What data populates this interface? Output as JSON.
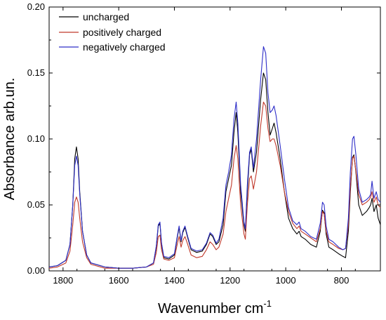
{
  "chart_data": {
    "type": "line",
    "title": "",
    "xlabel": "Wavenumber  cm",
    "xlabel_sup": "-1",
    "ylabel": "Absorbance  arb.un.",
    "xlim": [
      1850,
      660
    ],
    "ylim": [
      0,
      0.2
    ],
    "x_reversed": true,
    "x_ticks": [
      1800,
      1600,
      1400,
      1200,
      1000,
      800
    ],
    "y_ticks": [
      0.0,
      0.05,
      0.1,
      0.15,
      0.2
    ],
    "y_tick_labels": [
      "0.00",
      "0.05",
      "0.10",
      "0.15",
      "0.20"
    ],
    "grid": false,
    "legend_position": "top-left",
    "series": [
      {
        "name": "uncharged",
        "color": "#000000",
        "points": [
          [
            1850,
            0.003
          ],
          [
            1820,
            0.004
          ],
          [
            1790,
            0.008
          ],
          [
            1775,
            0.02
          ],
          [
            1765,
            0.05
          ],
          [
            1758,
            0.085
          ],
          [
            1752,
            0.094
          ],
          [
            1746,
            0.085
          ],
          [
            1740,
            0.06
          ],
          [
            1730,
            0.03
          ],
          [
            1715,
            0.012
          ],
          [
            1700,
            0.006
          ],
          [
            1650,
            0.003
          ],
          [
            1600,
            0.002
          ],
          [
            1550,
            0.002
          ],
          [
            1500,
            0.003
          ],
          [
            1475,
            0.006
          ],
          [
            1465,
            0.018
          ],
          [
            1458,
            0.034
          ],
          [
            1452,
            0.036
          ],
          [
            1446,
            0.02
          ],
          [
            1438,
            0.01
          ],
          [
            1420,
            0.009
          ],
          [
            1400,
            0.012
          ],
          [
            1390,
            0.025
          ],
          [
            1383,
            0.033
          ],
          [
            1376,
            0.022
          ],
          [
            1370,
            0.029
          ],
          [
            1362,
            0.033
          ],
          [
            1352,
            0.025
          ],
          [
            1340,
            0.016
          ],
          [
            1320,
            0.014
          ],
          [
            1300,
            0.015
          ],
          [
            1285,
            0.02
          ],
          [
            1272,
            0.028
          ],
          [
            1262,
            0.026
          ],
          [
            1250,
            0.02
          ],
          [
            1240,
            0.022
          ],
          [
            1225,
            0.035
          ],
          [
            1215,
            0.06
          ],
          [
            1205,
            0.07
          ],
          [
            1195,
            0.08
          ],
          [
            1186,
            0.105
          ],
          [
            1178,
            0.12
          ],
          [
            1172,
            0.105
          ],
          [
            1162,
            0.06
          ],
          [
            1150,
            0.035
          ],
          [
            1145,
            0.03
          ],
          [
            1138,
            0.06
          ],
          [
            1130,
            0.088
          ],
          [
            1124,
            0.092
          ],
          [
            1116,
            0.075
          ],
          [
            1105,
            0.09
          ],
          [
            1090,
            0.13
          ],
          [
            1080,
            0.15
          ],
          [
            1072,
            0.145
          ],
          [
            1064,
            0.12
          ],
          [
            1056,
            0.103
          ],
          [
            1048,
            0.108
          ],
          [
            1042,
            0.112
          ],
          [
            1035,
            0.105
          ],
          [
            1020,
            0.085
          ],
          [
            1005,
            0.06
          ],
          [
            990,
            0.04
          ],
          [
            975,
            0.032
          ],
          [
            960,
            0.028
          ],
          [
            952,
            0.03
          ],
          [
            945,
            0.026
          ],
          [
            930,
            0.024
          ],
          [
            910,
            0.02
          ],
          [
            890,
            0.018
          ],
          [
            876,
            0.03
          ],
          [
            868,
            0.046
          ],
          [
            862,
            0.044
          ],
          [
            855,
            0.028
          ],
          [
            845,
            0.018
          ],
          [
            830,
            0.016
          ],
          [
            810,
            0.013
          ],
          [
            795,
            0.011
          ],
          [
            785,
            0.01
          ],
          [
            775,
            0.03
          ],
          [
            768,
            0.06
          ],
          [
            760,
            0.086
          ],
          [
            755,
            0.088
          ],
          [
            748,
            0.075
          ],
          [
            738,
            0.05
          ],
          [
            725,
            0.042
          ],
          [
            710,
            0.045
          ],
          [
            700,
            0.048
          ],
          [
            695,
            0.05
          ],
          [
            690,
            0.055
          ],
          [
            683,
            0.045
          ],
          [
            675,
            0.05
          ],
          [
            668,
            0.04
          ],
          [
            660,
            0.035
          ]
        ]
      },
      {
        "name": "positively charged",
        "color": "#c0392b",
        "points": [
          [
            1850,
            0.002
          ],
          [
            1820,
            0.003
          ],
          [
            1790,
            0.006
          ],
          [
            1775,
            0.015
          ],
          [
            1765,
            0.035
          ],
          [
            1758,
            0.052
          ],
          [
            1752,
            0.056
          ],
          [
            1746,
            0.052
          ],
          [
            1740,
            0.04
          ],
          [
            1730,
            0.022
          ],
          [
            1715,
            0.01
          ],
          [
            1700,
            0.005
          ],
          [
            1650,
            0.002
          ],
          [
            1600,
            0.002
          ],
          [
            1550,
            0.002
          ],
          [
            1500,
            0.003
          ],
          [
            1475,
            0.005
          ],
          [
            1465,
            0.014
          ],
          [
            1458,
            0.026
          ],
          [
            1452,
            0.027
          ],
          [
            1446,
            0.016
          ],
          [
            1438,
            0.009
          ],
          [
            1420,
            0.008
          ],
          [
            1400,
            0.01
          ],
          [
            1390,
            0.02
          ],
          [
            1383,
            0.026
          ],
          [
            1376,
            0.018
          ],
          [
            1370,
            0.023
          ],
          [
            1362,
            0.026
          ],
          [
            1352,
            0.02
          ],
          [
            1340,
            0.012
          ],
          [
            1320,
            0.01
          ],
          [
            1300,
            0.011
          ],
          [
            1285,
            0.016
          ],
          [
            1272,
            0.022
          ],
          [
            1262,
            0.02
          ],
          [
            1250,
            0.016
          ],
          [
            1240,
            0.018
          ],
          [
            1225,
            0.028
          ],
          [
            1215,
            0.045
          ],
          [
            1205,
            0.055
          ],
          [
            1195,
            0.065
          ],
          [
            1186,
            0.085
          ],
          [
            1178,
            0.095
          ],
          [
            1172,
            0.085
          ],
          [
            1162,
            0.05
          ],
          [
            1150,
            0.028
          ],
          [
            1145,
            0.024
          ],
          [
            1138,
            0.05
          ],
          [
            1130,
            0.07
          ],
          [
            1124,
            0.072
          ],
          [
            1116,
            0.062
          ],
          [
            1105,
            0.075
          ],
          [
            1090,
            0.11
          ],
          [
            1080,
            0.128
          ],
          [
            1072,
            0.125
          ],
          [
            1064,
            0.108
          ],
          [
            1056,
            0.098
          ],
          [
            1048,
            0.1
          ],
          [
            1042,
            0.1
          ],
          [
            1035,
            0.095
          ],
          [
            1020,
            0.08
          ],
          [
            1005,
            0.06
          ],
          [
            990,
            0.045
          ],
          [
            975,
            0.036
          ],
          [
            960,
            0.032
          ],
          [
            952,
            0.034
          ],
          [
            945,
            0.03
          ],
          [
            930,
            0.028
          ],
          [
            910,
            0.025
          ],
          [
            890,
            0.022
          ],
          [
            876,
            0.032
          ],
          [
            868,
            0.045
          ],
          [
            862,
            0.043
          ],
          [
            855,
            0.03
          ],
          [
            845,
            0.022
          ],
          [
            830,
            0.02
          ],
          [
            810,
            0.017
          ],
          [
            795,
            0.016
          ],
          [
            785,
            0.017
          ],
          [
            775,
            0.035
          ],
          [
            768,
            0.063
          ],
          [
            760,
            0.085
          ],
          [
            755,
            0.087
          ],
          [
            748,
            0.076
          ],
          [
            738,
            0.058
          ],
          [
            725,
            0.05
          ],
          [
            710,
            0.052
          ],
          [
            700,
            0.054
          ],
          [
            695,
            0.056
          ],
          [
            690,
            0.06
          ],
          [
            683,
            0.052
          ],
          [
            675,
            0.056
          ],
          [
            668,
            0.05
          ],
          [
            660,
            0.048
          ]
        ]
      },
      {
        "name": "negatively charged",
        "color": "#2e2ec8",
        "points": [
          [
            1850,
            0.003
          ],
          [
            1820,
            0.004
          ],
          [
            1790,
            0.008
          ],
          [
            1775,
            0.02
          ],
          [
            1765,
            0.05
          ],
          [
            1758,
            0.08
          ],
          [
            1752,
            0.087
          ],
          [
            1746,
            0.08
          ],
          [
            1740,
            0.058
          ],
          [
            1730,
            0.03
          ],
          [
            1715,
            0.012
          ],
          [
            1700,
            0.006
          ],
          [
            1650,
            0.003
          ],
          [
            1600,
            0.002
          ],
          [
            1550,
            0.002
          ],
          [
            1500,
            0.003
          ],
          [
            1475,
            0.006
          ],
          [
            1465,
            0.019
          ],
          [
            1458,
            0.035
          ],
          [
            1452,
            0.037
          ],
          [
            1446,
            0.021
          ],
          [
            1438,
            0.011
          ],
          [
            1420,
            0.01
          ],
          [
            1400,
            0.013
          ],
          [
            1390,
            0.026
          ],
          [
            1383,
            0.034
          ],
          [
            1376,
            0.023
          ],
          [
            1370,
            0.03
          ],
          [
            1362,
            0.034
          ],
          [
            1352,
            0.026
          ],
          [
            1340,
            0.017
          ],
          [
            1320,
            0.015
          ],
          [
            1300,
            0.016
          ],
          [
            1285,
            0.021
          ],
          [
            1272,
            0.029
          ],
          [
            1262,
            0.027
          ],
          [
            1250,
            0.021
          ],
          [
            1240,
            0.024
          ],
          [
            1225,
            0.04
          ],
          [
            1215,
            0.065
          ],
          [
            1205,
            0.075
          ],
          [
            1195,
            0.088
          ],
          [
            1186,
            0.115
          ],
          [
            1178,
            0.128
          ],
          [
            1172,
            0.112
          ],
          [
            1162,
            0.065
          ],
          [
            1150,
            0.037
          ],
          [
            1145,
            0.032
          ],
          [
            1138,
            0.065
          ],
          [
            1130,
            0.09
          ],
          [
            1124,
            0.094
          ],
          [
            1116,
            0.078
          ],
          [
            1105,
            0.1
          ],
          [
            1090,
            0.145
          ],
          [
            1080,
            0.17
          ],
          [
            1072,
            0.165
          ],
          [
            1064,
            0.135
          ],
          [
            1056,
            0.12
          ],
          [
            1048,
            0.122
          ],
          [
            1042,
            0.125
          ],
          [
            1035,
            0.118
          ],
          [
            1020,
            0.095
          ],
          [
            1005,
            0.07
          ],
          [
            990,
            0.048
          ],
          [
            975,
            0.038
          ],
          [
            960,
            0.035
          ],
          [
            952,
            0.037
          ],
          [
            945,
            0.032
          ],
          [
            930,
            0.03
          ],
          [
            910,
            0.026
          ],
          [
            890,
            0.024
          ],
          [
            876,
            0.036
          ],
          [
            868,
            0.052
          ],
          [
            862,
            0.05
          ],
          [
            855,
            0.034
          ],
          [
            845,
            0.024
          ],
          [
            830,
            0.022
          ],
          [
            810,
            0.018
          ],
          [
            795,
            0.016
          ],
          [
            785,
            0.017
          ],
          [
            775,
            0.04
          ],
          [
            768,
            0.075
          ],
          [
            760,
            0.1
          ],
          [
            755,
            0.102
          ],
          [
            748,
            0.088
          ],
          [
            738,
            0.062
          ],
          [
            725,
            0.052
          ],
          [
            710,
            0.054
          ],
          [
            700,
            0.056
          ],
          [
            695,
            0.058
          ],
          [
            690,
            0.068
          ],
          [
            683,
            0.055
          ],
          [
            675,
            0.06
          ],
          [
            668,
            0.054
          ],
          [
            660,
            0.052
          ]
        ]
      }
    ]
  }
}
